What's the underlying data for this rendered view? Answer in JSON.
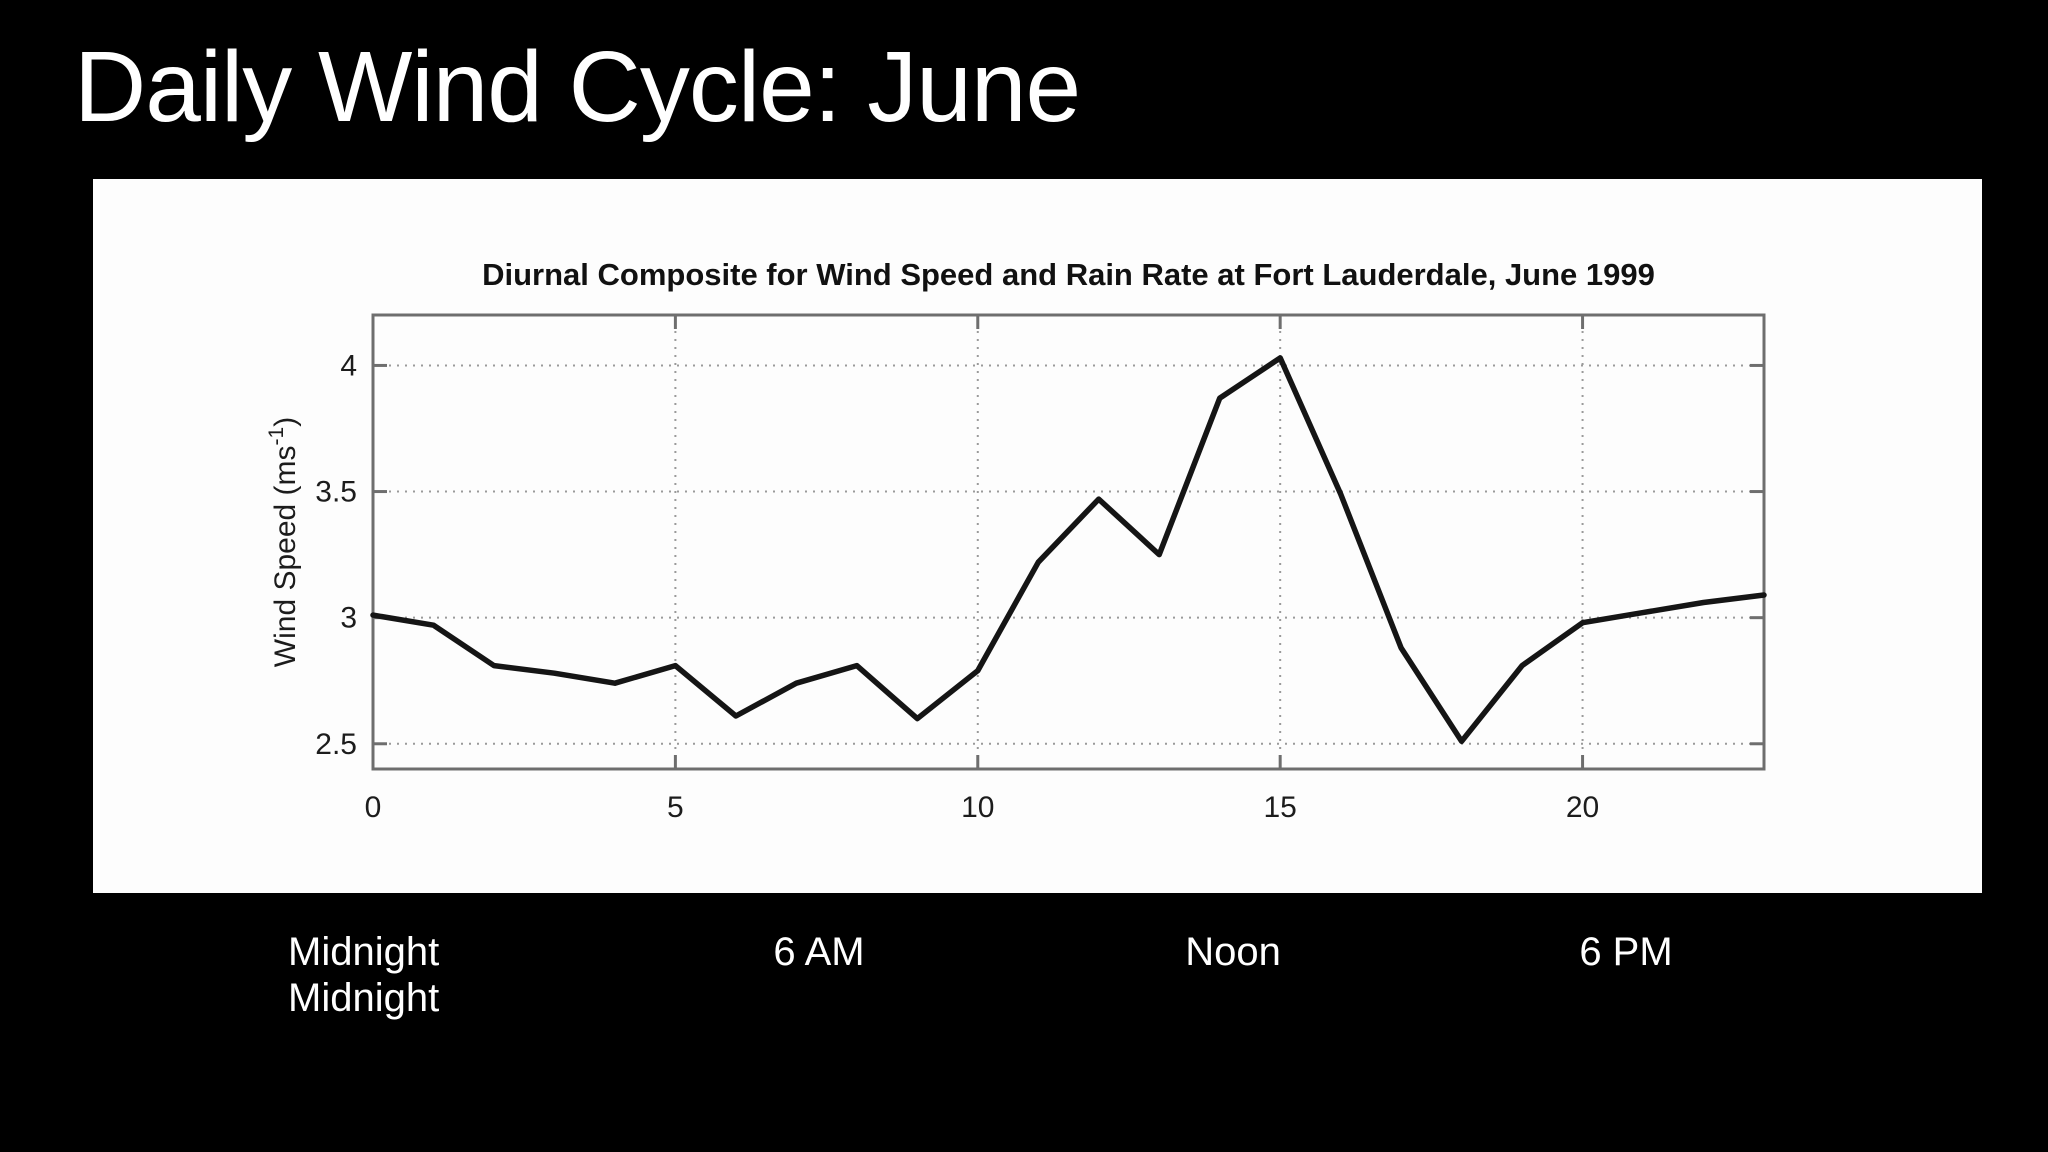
{
  "slide": {
    "title": "Daily Wind Cycle: June",
    "background_color": "#000000",
    "text_color": "#ffffff",
    "panel_color": "#fdfdfd"
  },
  "caption": {
    "line1": [
      "Midnight",
      "6 AM",
      "Noon",
      "6 PM"
    ],
    "line2": "Midnight"
  },
  "chart_data": {
    "type": "line",
    "title": "Diurnal Composite for Wind Speed and Rain Rate at Fort Lauderdale, June 1999",
    "xlabel": "",
    "ylabel": "Wind Speed (ms⁻¹)",
    "x": [
      0,
      1,
      2,
      3,
      4,
      5,
      6,
      7,
      8,
      9,
      10,
      11,
      12,
      13,
      14,
      15,
      16,
      17,
      18,
      19,
      20,
      21,
      22,
      23
    ],
    "values": [
      3.01,
      2.97,
      2.81,
      2.78,
      2.74,
      2.81,
      2.61,
      2.74,
      2.81,
      2.6,
      2.79,
      3.22,
      3.47,
      3.25,
      3.87,
      4.03,
      3.49,
      2.88,
      2.51,
      2.81,
      2.98,
      3.02,
      3.06,
      3.09
    ],
    "xlim": [
      0,
      23
    ],
    "ylim": [
      2.4,
      4.2
    ],
    "xticks": [
      0,
      5,
      10,
      15,
      20
    ],
    "yticks": [
      2.5,
      3,
      3.5,
      4
    ],
    "grid": true,
    "legend": null,
    "line_color": "#151515",
    "frame_color": "#6e6e6e",
    "grid_color": "#9a9a9a",
    "tick_label_color": "#1c1c1c",
    "title_color": "#111111"
  }
}
